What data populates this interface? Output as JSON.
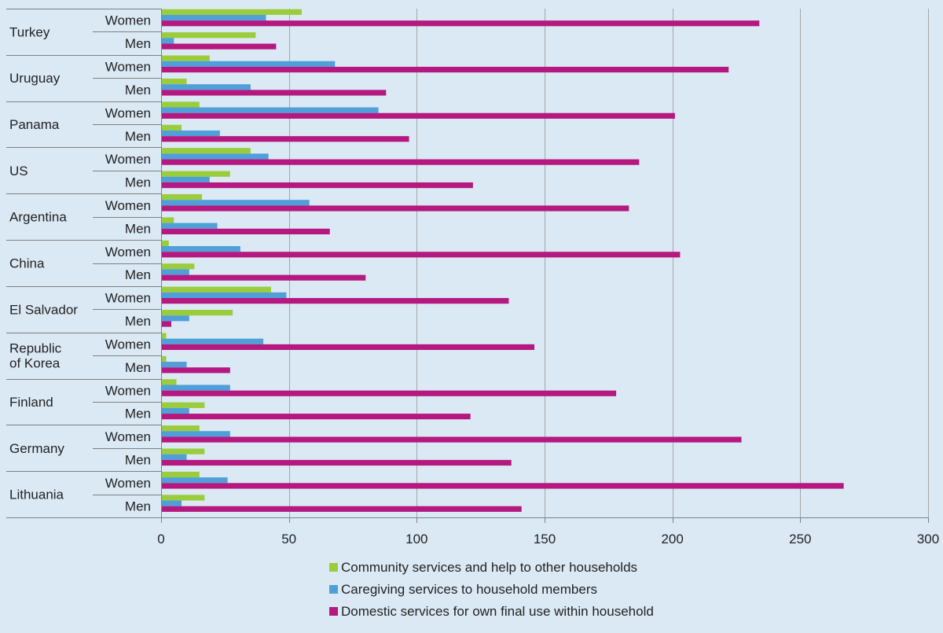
{
  "chart_data": {
    "type": "bar",
    "orientation": "horizontal",
    "title": "",
    "xlabel": "",
    "ylabel": "",
    "xlim": [
      0,
      300
    ],
    "xticks": [
      0,
      50,
      100,
      150,
      200,
      250,
      300
    ],
    "grid": true,
    "legend_position": "bottom",
    "countries": [
      {
        "label": [
          "Turkey"
        ],
        "subgroups": [
          "Women",
          "Men"
        ]
      },
      {
        "label": [
          "Uruguay"
        ],
        "subgroups": [
          "Women",
          "Men"
        ]
      },
      {
        "label": [
          "Panama"
        ],
        "subgroups": [
          "Women",
          "Men"
        ]
      },
      {
        "label": [
          "US"
        ],
        "subgroups": [
          "Women",
          "Men"
        ]
      },
      {
        "label": [
          "Argentina"
        ],
        "subgroups": [
          "Women",
          "Men"
        ]
      },
      {
        "label": [
          "China"
        ],
        "subgroups": [
          "Women",
          "Men"
        ]
      },
      {
        "label": [
          "El Salvador"
        ],
        "subgroups": [
          "Women",
          "Men"
        ]
      },
      {
        "label": [
          "Republic",
          "of Korea"
        ],
        "subgroups": [
          "Women",
          "Men"
        ]
      },
      {
        "label": [
          "Finland"
        ],
        "subgroups": [
          "Women",
          "Men"
        ]
      },
      {
        "label": [
          "Germany"
        ],
        "subgroups": [
          "Women",
          "Men"
        ]
      },
      {
        "label": [
          "Lithuania"
        ],
        "subgroups": [
          "Women",
          "Men"
        ]
      }
    ],
    "series": [
      {
        "name": "Community services and help to other households",
        "color": "#9bcc3b",
        "values": [
          55,
          37,
          19,
          10,
          15,
          8,
          35,
          27,
          16,
          5,
          3,
          13,
          43,
          28,
          2,
          2,
          6,
          17,
          15,
          17,
          15,
          17
        ]
      },
      {
        "name": "Caregiving services to household members",
        "color": "#4f9fd8",
        "values": [
          41,
          5,
          68,
          35,
          85,
          23,
          42,
          19,
          58,
          22,
          31,
          11,
          49,
          11,
          40,
          10,
          27,
          11,
          27,
          10,
          26,
          8
        ]
      },
      {
        "name": "Domestic services for own final use within household",
        "color": "#b5197f",
        "values": [
          234,
          45,
          222,
          88,
          201,
          97,
          187,
          122,
          183,
          66,
          203,
          80,
          136,
          4,
          146,
          27,
          178,
          121,
          227,
          137,
          267,
          141
        ]
      }
    ]
  }
}
